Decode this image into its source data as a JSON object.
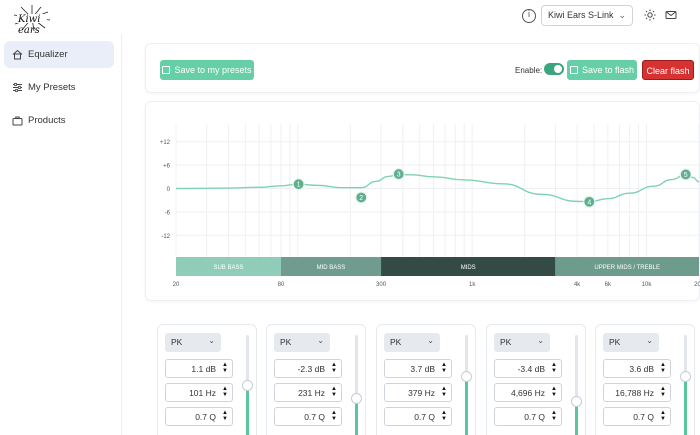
{
  "header": {
    "logo_text": "Kiwi ears",
    "device_name": "Kiwi Ears S-Link",
    "icons": [
      "info-icon",
      "chevron-down-icon",
      "sun-icon",
      "mail-icon"
    ]
  },
  "sidebar": {
    "items": [
      {
        "label": "Equalizer",
        "icon": "home-icon",
        "active": true
      },
      {
        "label": "My Presets",
        "icon": "sliders-icon",
        "active": false
      },
      {
        "label": "Products",
        "icon": "bag-icon",
        "active": false
      }
    ]
  },
  "toolbar": {
    "save_presets_label": "Save to my presets",
    "enable_label": "Enable:",
    "enabled": true,
    "save_flash_label": "Save to flash",
    "clear_flash_label": "Clear flash"
  },
  "colors": {
    "accent": "#67cfa7",
    "toggle_on": "#3ba57e",
    "danger": "#d63232",
    "curve": "#7fd3b0",
    "node": "#5fae8e"
  },
  "chart_data": {
    "type": "line",
    "x_scale": "log",
    "xlim": [
      20,
      20000
    ],
    "ylim": [
      -15,
      15
    ],
    "ytick_labels": [
      "+12",
      "+6",
      "0",
      "-6",
      "-12"
    ],
    "ytick_values": [
      12,
      6,
      0,
      -6,
      -12
    ],
    "xtick_labels": [
      "20",
      "80",
      "300",
      "1k",
      "4k",
      "6k",
      "10k",
      "20k"
    ],
    "xtick_values": [
      20,
      80,
      300,
      1000,
      4000,
      6000,
      10000,
      20000
    ],
    "grid": true,
    "curve": {
      "x": [
        20,
        40,
        60,
        80,
        101,
        130,
        180,
        231,
        280,
        330,
        379,
        450,
        600,
        900,
        1500,
        2500,
        4000,
        4696,
        6000,
        8000,
        11000,
        14000,
        16788,
        18500,
        20000
      ],
      "y": [
        0,
        0.1,
        0.3,
        0.7,
        1.1,
        0.8,
        0.2,
        0.2,
        1.8,
        3.1,
        3.6,
        3.5,
        3.0,
        2.2,
        1.2,
        -1.5,
        -3.3,
        -3.4,
        -2.6,
        -1.2,
        0.6,
        2.3,
        3.6,
        2.8,
        1.7
      ]
    },
    "bands_ranges": [
      {
        "label": "SUB BASS",
        "from": 20,
        "to": 80
      },
      {
        "label": "MID BASS",
        "from": 80,
        "to": 300
      },
      {
        "label": "MIDS",
        "from": 300,
        "to": 3000
      },
      {
        "label": "UPPER MIDS / TREBLE",
        "from": 3000,
        "to": 20000
      }
    ],
    "filters": [
      {
        "id": "1",
        "freq": 101,
        "gain": 1.1
      },
      {
        "id": "2",
        "freq": 231,
        "gain": -2.3
      },
      {
        "id": "3",
        "freq": 379,
        "gain": 3.7
      },
      {
        "id": "4",
        "freq": 4696,
        "gain": -3.4
      },
      {
        "id": "5",
        "freq": 16788,
        "gain": 3.6
      }
    ]
  },
  "bands": [
    {
      "type": "PK",
      "gain": "1.1 dB",
      "freq": "101 Hz",
      "q": "0.7 Q",
      "level": 0.54
    },
    {
      "type": "PK",
      "gain": "-2.3 dB",
      "freq": "231 Hz",
      "q": "0.7 Q",
      "level": 0.42
    },
    {
      "type": "PK",
      "gain": "3.7 dB",
      "freq": "379 Hz",
      "q": "0.7 Q",
      "level": 0.62
    },
    {
      "type": "PK",
      "gain": "-3.4 dB",
      "freq": "4,696 Hz",
      "q": "0.7 Q",
      "level": 0.39
    },
    {
      "type": "PK",
      "gain": "3.6 dB",
      "freq": "16,788 Hz",
      "q": "0.7 Q",
      "level": 0.62
    }
  ]
}
